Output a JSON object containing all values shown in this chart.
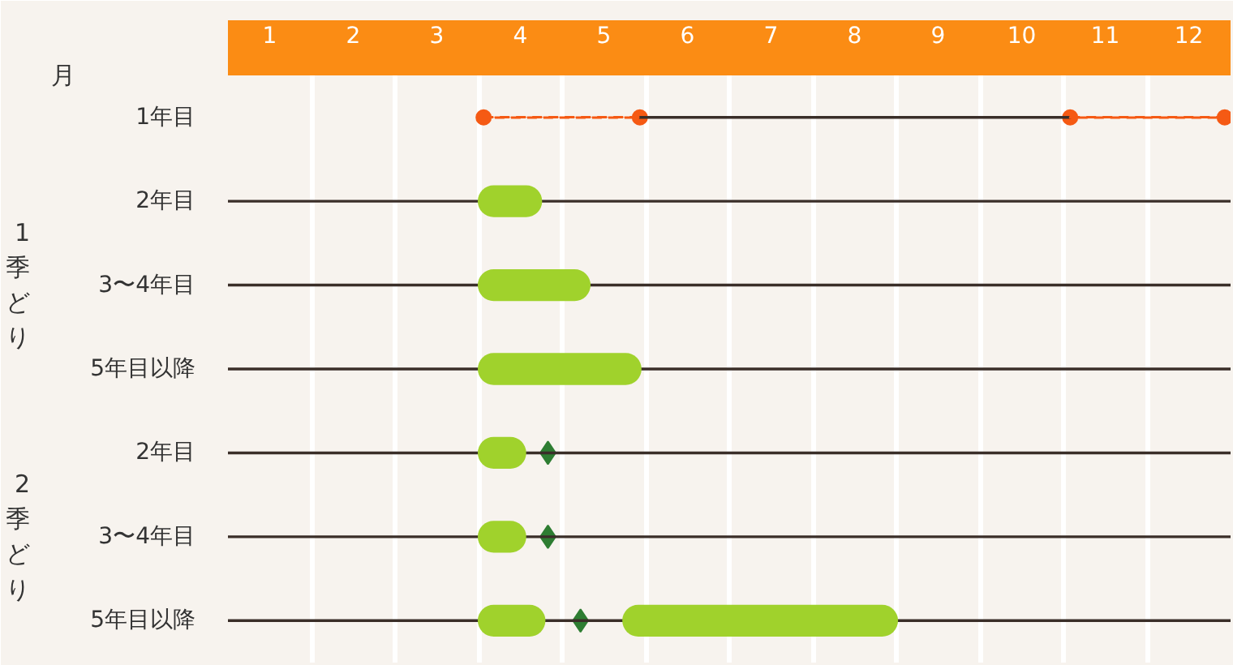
{
  "chart_data": {
    "type": "bar",
    "orientation": "horizontal",
    "xlabel": "月",
    "categories": [
      "1年目",
      "2年目",
      "3〜4年目",
      "5年目以降",
      "2年目",
      "3〜4年目",
      "5年目以降"
    ],
    "annotations": [
      "1季どり",
      "2季どり"
    ],
    "xlim": [
      0.5,
      12.5
    ],
    "xticks": [
      1,
      2,
      3,
      4,
      5,
      6,
      7,
      8,
      9,
      10,
      11,
      12
    ],
    "series": [
      {
        "color": "#3a2e28",
        "line_style": "solid",
        "base": [
          5.43,
          0.5,
          0.5,
          0.5,
          0.5,
          0.5,
          0.5
        ],
        "values": [
          5.15,
          12,
          12,
          12,
          12,
          12,
          12
        ]
      },
      {
        "color": "#a0d22c",
        "base": [
          null,
          3.49,
          3.49,
          3.49,
          3.49,
          3.49,
          3.49
        ],
        "values": [
          null,
          0.77,
          1.35,
          1.96,
          0.58,
          0.58,
          0.81
        ]
      },
      {
        "color": "#a0d22c",
        "base": [
          null,
          null,
          null,
          null,
          null,
          null,
          5.22
        ],
        "values": [
          null,
          null,
          null,
          null,
          null,
          null,
          3.3
        ]
      },
      {
        "color": "#f55a14",
        "line_style": "dashed",
        "base": [
          3.56,
          null,
          null,
          null,
          null,
          null,
          null
        ],
        "values": [
          1.87,
          null,
          null,
          null,
          null,
          null,
          null
        ]
      },
      {
        "color": "#f55a14",
        "line_style": "dashed",
        "base": [
          10.58,
          null,
          null,
          null,
          null,
          null,
          null
        ],
        "values": [
          1.85,
          null,
          null,
          null,
          null,
          null,
          null
        ]
      },
      {
        "type": "scatter",
        "color": "#f55a14",
        "marker": "circle",
        "values": [
          3.56,
          null,
          null,
          null,
          null,
          null,
          null
        ]
      },
      {
        "type": "scatter",
        "color": "#f55a14",
        "marker": "circle",
        "values": [
          5.43,
          null,
          null,
          null,
          null,
          null,
          null
        ]
      },
      {
        "type": "scatter",
        "color": "#f55a14",
        "marker": "circle",
        "values": [
          10.58,
          null,
          null,
          null,
          null,
          null,
          null
        ]
      },
      {
        "type": "scatter",
        "color": "#f55a14",
        "marker": "circle",
        "values": [
          12.43,
          null,
          null,
          null,
          null,
          null,
          null
        ]
      },
      {
        "type": "scatter",
        "color": "#2e7d32",
        "marker": "diamond",
        "values": [
          null,
          null,
          null,
          null,
          4.33,
          4.33,
          4.72
        ]
      }
    ]
  }
}
